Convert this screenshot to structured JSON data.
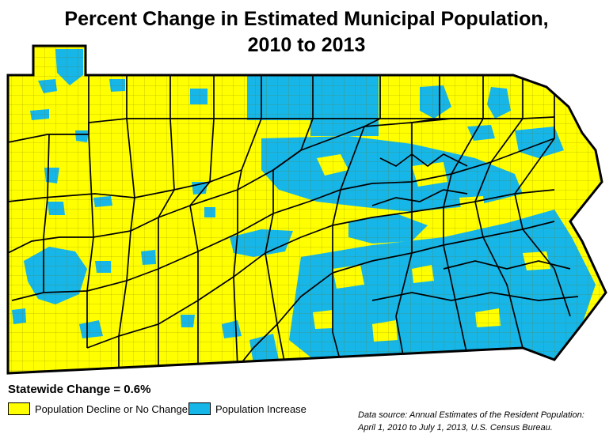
{
  "title": {
    "line1": "Percent Change in Estimated Municipal Population,",
    "line2": "2010 to 2013"
  },
  "statewide_change": "Statewide Change = 0.6%",
  "legend": {
    "items": [
      {
        "label": "Population Decline or No Change",
        "color": "#ffff00"
      },
      {
        "label": "Population Increase",
        "color": "#17b6e8"
      }
    ]
  },
  "source": {
    "line1": "Data source: Annual Estimates of the Resident Population:",
    "line2": "April 1, 2010 to July 1, 2013, U.S. Census Bureau."
  },
  "colors": {
    "decline": "#ffff00",
    "increase": "#17b6e8",
    "border": "#000000"
  }
}
